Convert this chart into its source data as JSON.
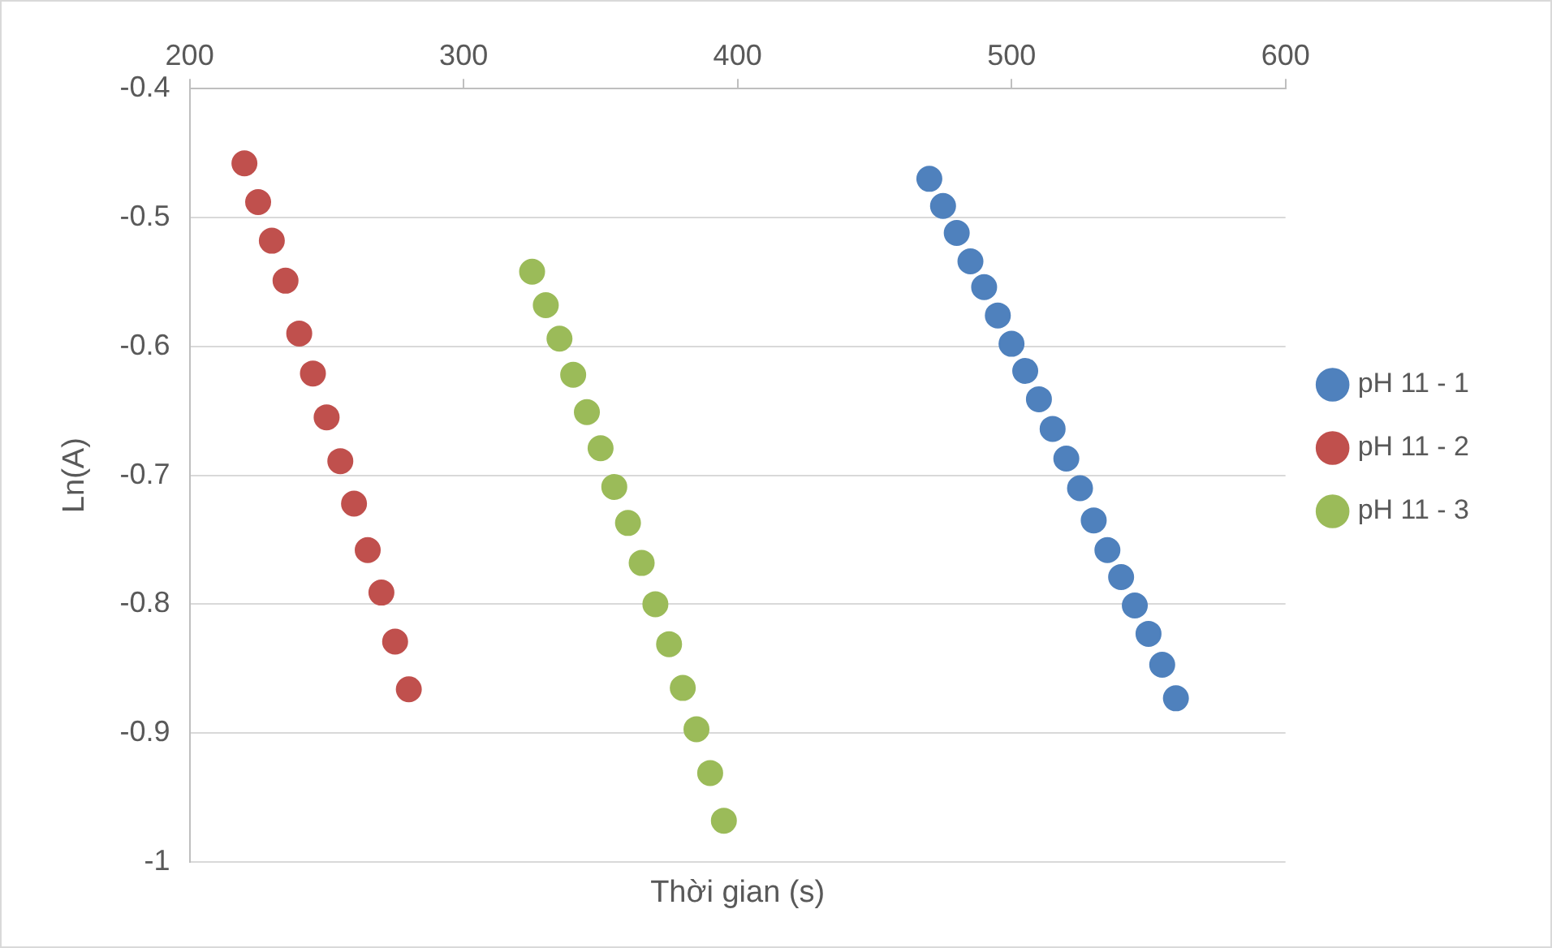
{
  "chart_data": {
    "type": "scatter",
    "xlabel": "Thời gian (s)",
    "ylabel": "Ln(A)",
    "xlim": [
      200,
      600
    ],
    "xticks": [
      200,
      300,
      400,
      500,
      600
    ],
    "ylim": [
      -1,
      -0.4
    ],
    "yticks": [
      -1,
      -0.9,
      -0.8,
      -0.7,
      -0.6,
      -0.5,
      -0.4
    ],
    "grid": "y",
    "legend": "right",
    "marker": "circle",
    "series": [
      {
        "name": "pH 11 - 1",
        "color": "#4f81bd",
        "x": [
          470,
          475,
          480,
          485,
          490,
          495,
          500,
          505,
          510,
          515,
          520,
          525,
          530,
          535,
          540,
          545,
          550,
          555,
          560
        ],
        "values": [
          -0.47,
          -0.491,
          -0.512,
          -0.534,
          -0.554,
          -0.576,
          -0.598,
          -0.619,
          -0.641,
          -0.664,
          -0.687,
          -0.71,
          -0.735,
          -0.758,
          -0.779,
          -0.801,
          -0.823,
          -0.847,
          -0.873
        ]
      },
      {
        "name": "pH 11 - 2",
        "color": "#c0504d",
        "x": [
          220,
          225,
          230,
          235,
          240,
          245,
          250,
          255,
          260,
          265,
          270,
          275,
          280
        ],
        "values": [
          -0.458,
          -0.488,
          -0.518,
          -0.549,
          -0.59,
          -0.621,
          -0.655,
          -0.689,
          -0.722,
          -0.758,
          -0.791,
          -0.829,
          -0.866
        ]
      },
      {
        "name": "pH 11 - 3",
        "color": "#9bbb59",
        "x": [
          325,
          330,
          335,
          340,
          345,
          350,
          355,
          360,
          365,
          370,
          375,
          380,
          385,
          390,
          395
        ],
        "values": [
          -0.542,
          -0.568,
          -0.594,
          -0.622,
          -0.651,
          -0.679,
          -0.709,
          -0.737,
          -0.768,
          -0.8,
          -0.831,
          -0.865,
          -0.897,
          -0.931,
          -0.968
        ]
      }
    ]
  }
}
